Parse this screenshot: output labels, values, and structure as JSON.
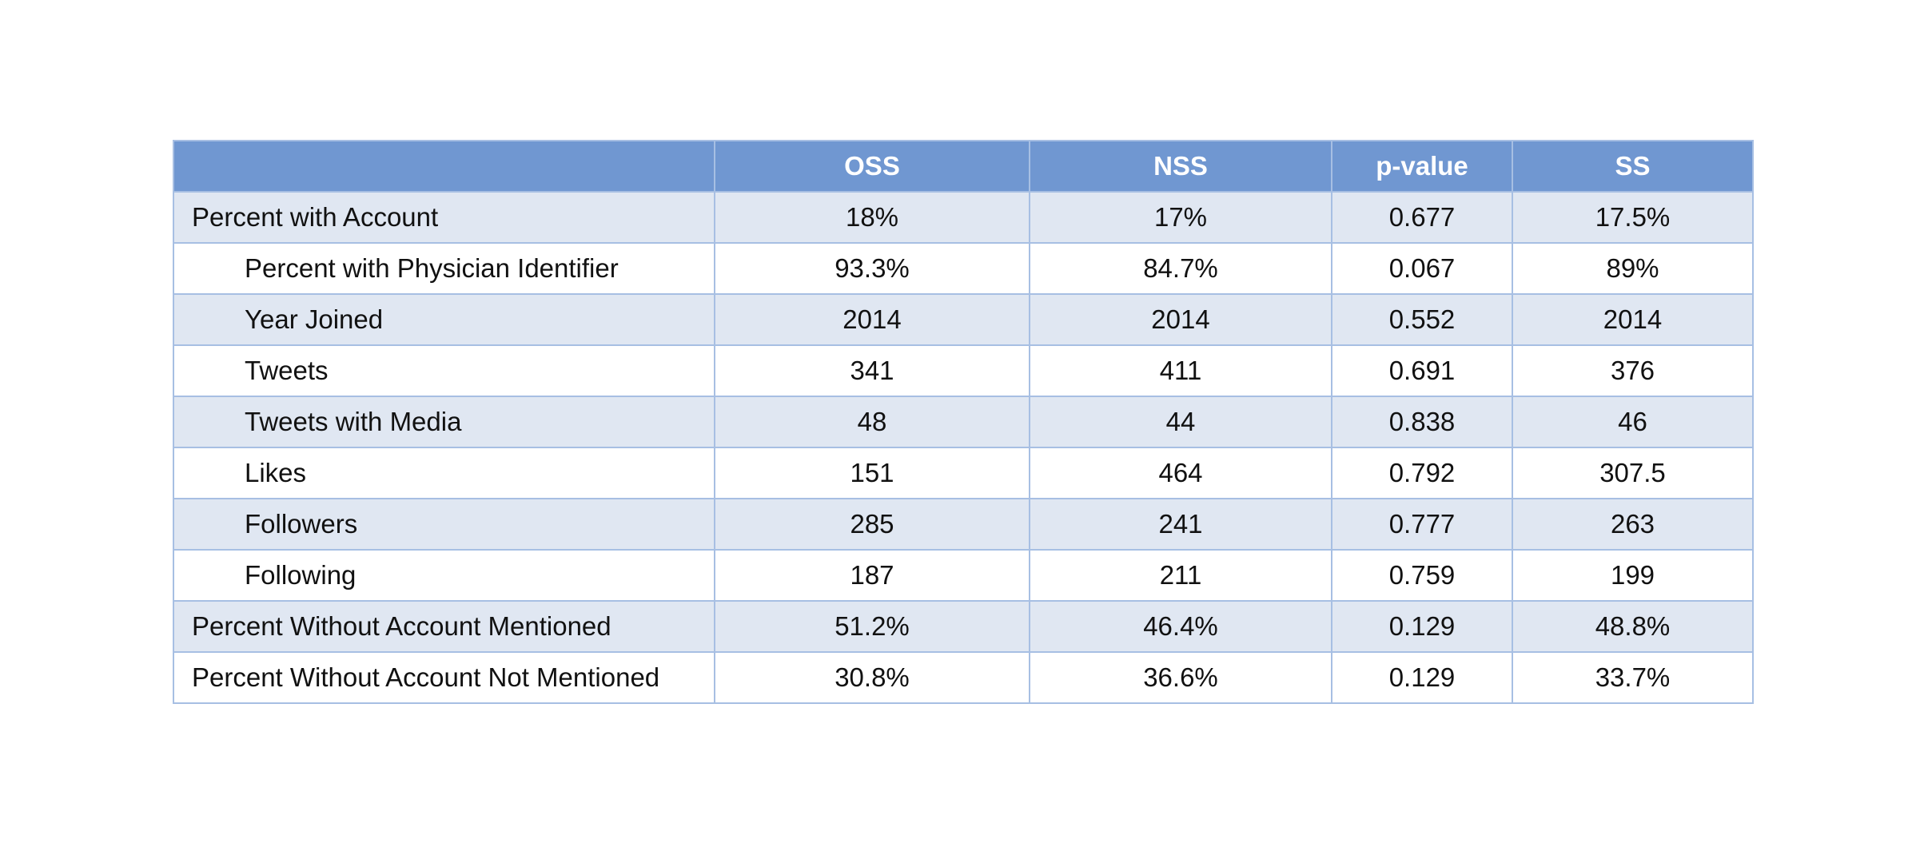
{
  "table": {
    "columns": [
      "",
      "OSS",
      "NSS",
      "p-value",
      "SS"
    ],
    "rows": [
      {
        "label": "Percent with Account",
        "indent": 0,
        "oss": "18%",
        "nss": "17%",
        "p_value": "0.677",
        "ss": "17.5%"
      },
      {
        "label": "Percent with Physician Identifier",
        "indent": 1,
        "oss": "93.3%",
        "nss": "84.7%",
        "p_value": "0.067",
        "ss": "89%"
      },
      {
        "label": "Year Joined",
        "indent": 1,
        "oss": "2014",
        "nss": "2014",
        "p_value": "0.552",
        "ss": "2014"
      },
      {
        "label": "Tweets",
        "indent": 1,
        "oss": "341",
        "nss": "411",
        "p_value": "0.691",
        "ss": "376"
      },
      {
        "label": "Tweets with Media",
        "indent": 1,
        "oss": "48",
        "nss": "44",
        "p_value": "0.838",
        "ss": "46"
      },
      {
        "label": "Likes",
        "indent": 1,
        "oss": "151",
        "nss": "464",
        "p_value": "0.792",
        "ss": "307.5"
      },
      {
        "label": "Followers",
        "indent": 1,
        "oss": "285",
        "nss": "241",
        "p_value": "0.777",
        "ss": "263"
      },
      {
        "label": "Following",
        "indent": 1,
        "oss": "187",
        "nss": "211",
        "p_value": "0.759",
        "ss": "199"
      },
      {
        "label": "Percent Without Account Mentioned",
        "indent": 0,
        "oss": "51.2%",
        "nss": "46.4%",
        "p_value": "0.129",
        "ss": "48.8%"
      },
      {
        "label": "Percent Without Account Not Mentioned",
        "indent": 0,
        "oss": "30.8%",
        "nss": "36.6%",
        "p_value": "0.129",
        "ss": "33.7%"
      }
    ]
  },
  "colors": {
    "header_background": "#7097d1",
    "header_text": "#ffffff",
    "row_shaded": "#e0e7f2",
    "row_plain": "#ffffff",
    "border": "#a7bfe3"
  }
}
